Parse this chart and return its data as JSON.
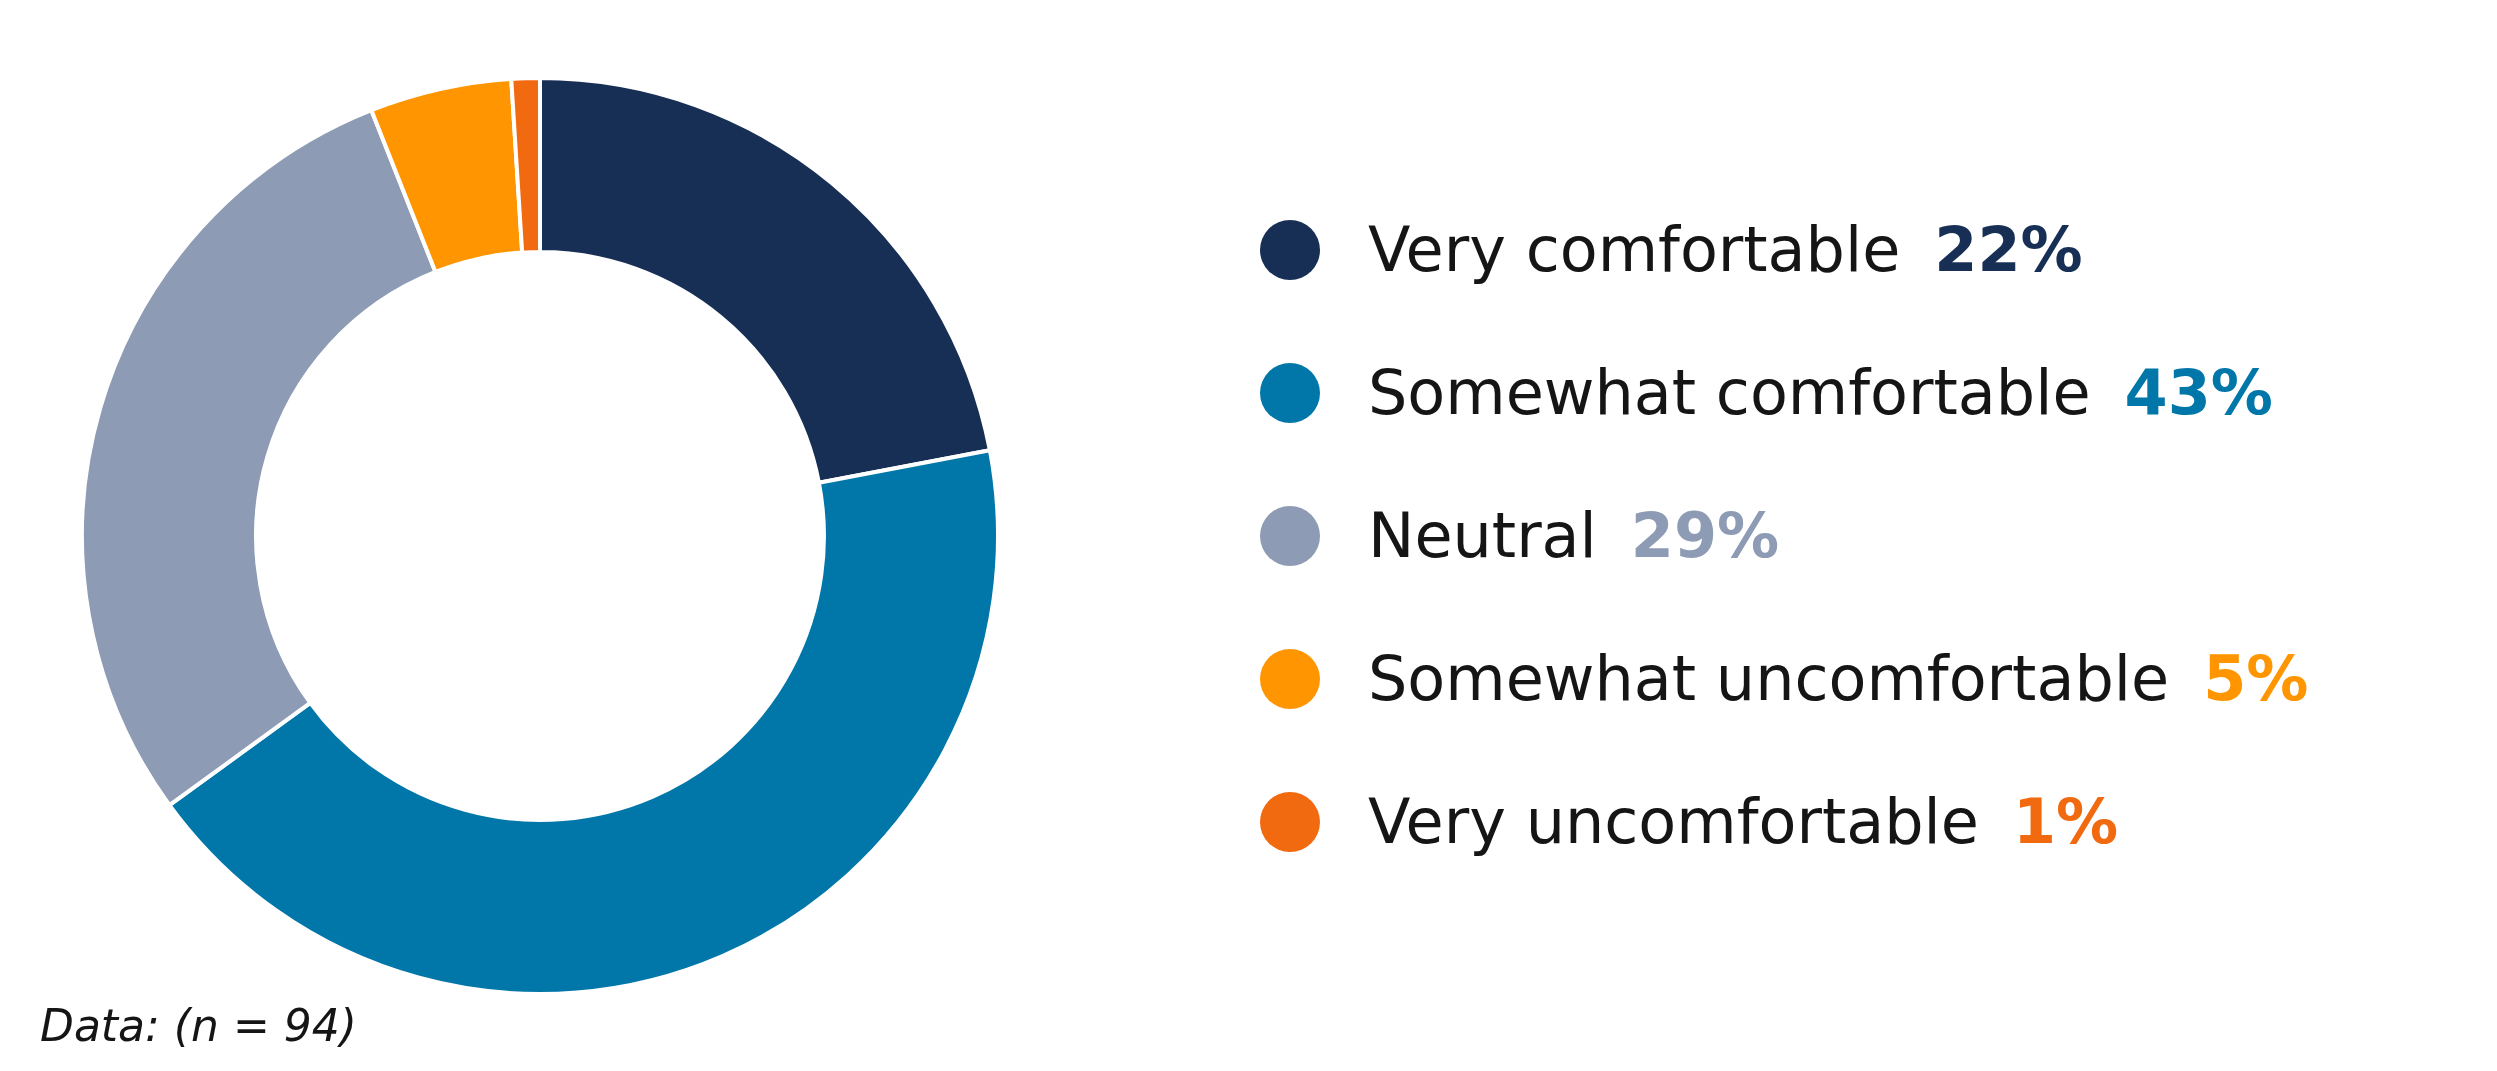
{
  "chart_data": {
    "type": "donut",
    "categories": [
      "Very comfortable",
      "Somewhat comfortable",
      "Neutral",
      "Somewhat uncomfortable",
      "Very uncomfortable"
    ],
    "values": [
      22,
      43,
      29,
      5,
      1
    ],
    "colors": [
      "#172f55",
      "#0077a8",
      "#8d9bb4",
      "#ff9500",
      "#f26a0f"
    ],
    "value_labels": [
      "22%",
      "43%",
      "29%",
      "5%",
      "1%"
    ],
    "legend": "right",
    "annotations": [
      "Data: (n = 94)"
    ]
  }
}
